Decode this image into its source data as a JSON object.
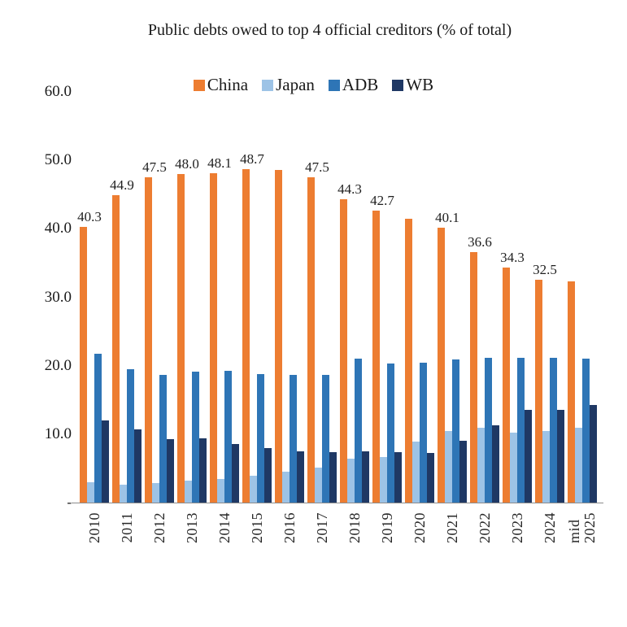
{
  "chart_data": {
    "type": "bar",
    "title": "Public debts owed to top 4 official creditors (% of total)",
    "categories": [
      "2010",
      "2011",
      "2012",
      "2013",
      "2014",
      "2015",
      "2016",
      "2017",
      "2018",
      "2019",
      "2020",
      "2021",
      "2022",
      "2023",
      "2024",
      "mid 2025"
    ],
    "series": [
      {
        "name": "China",
        "color": "#ED7D31",
        "values": [
          40.3,
          44.9,
          47.5,
          48.0,
          48.1,
          48.7,
          48.6,
          47.5,
          44.3,
          42.7,
          41.5,
          40.1,
          36.6,
          34.3,
          32.5,
          32.3
        ],
        "data_labels": [
          "40.3",
          "44.9",
          "47.5",
          "48.0",
          "48.1",
          "48.7",
          null,
          "47.5",
          "44.3",
          "42.7",
          null,
          "40.1",
          "36.6",
          "34.3",
          "32.5",
          null
        ]
      },
      {
        "name": "Japan",
        "color": "#9DC3E6",
        "values": [
          3.0,
          2.6,
          2.9,
          3.2,
          3.5,
          3.9,
          4.5,
          5.1,
          6.4,
          6.6,
          8.9,
          10.4,
          10.9,
          10.2,
          10.4,
          10.9
        ]
      },
      {
        "name": "ADB",
        "color": "#2E75B6",
        "values": [
          21.7,
          19.5,
          18.6,
          19.1,
          19.2,
          18.8,
          18.7,
          18.7,
          21.0,
          20.3,
          20.4,
          20.9,
          21.1,
          21.2,
          21.2,
          21.0
        ]
      },
      {
        "name": "WB",
        "color": "#1F3864",
        "values": [
          12.0,
          10.7,
          9.3,
          9.4,
          8.5,
          8.0,
          7.5,
          7.4,
          7.5,
          7.4,
          7.3,
          9.0,
          11.3,
          13.5,
          13.6,
          14.3
        ]
      }
    ],
    "ylim": [
      0,
      60
    ],
    "yticks": [
      {
        "label": "60.0",
        "value": 60
      },
      {
        "label": "50.0",
        "value": 50
      },
      {
        "label": "40.0",
        "value": 40
      },
      {
        "label": "30.0",
        "value": 30
      },
      {
        "label": "20.0",
        "value": 20
      },
      {
        "label": "10.0",
        "value": 10
      },
      {
        "label": "-",
        "value": 0
      }
    ],
    "legend_position": "top",
    "grid": false
  }
}
